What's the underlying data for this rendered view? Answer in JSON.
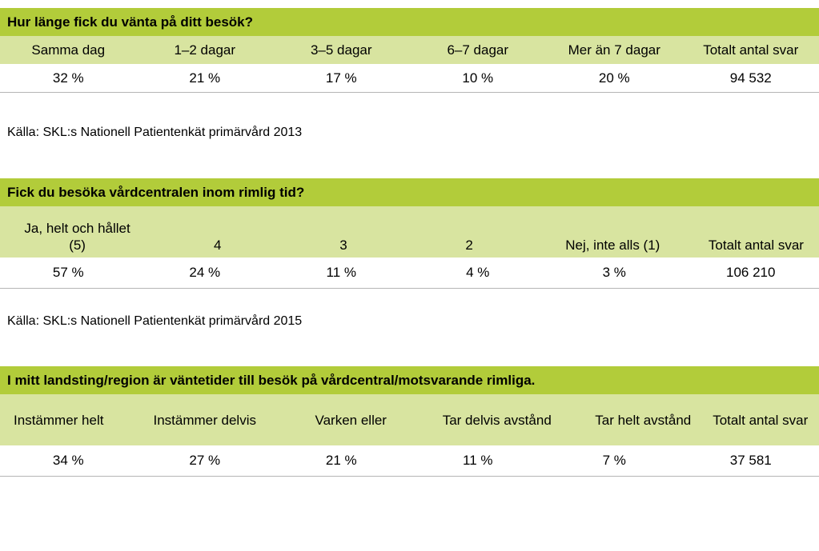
{
  "tables": [
    {
      "title": "Hur länge fick du vänta på ditt besök?",
      "headers": [
        "Samma dag",
        "1–2 dagar",
        "3–5 dagar",
        "6–7 dagar",
        "Mer än 7 dagar",
        "Totalt antal svar"
      ],
      "values": [
        "32 %",
        "21 %",
        "17 %",
        "10 %",
        "20 %",
        "94 532"
      ],
      "source": "Källa: SKL:s Nationell Patientenkät primärvård 2013"
    },
    {
      "title": "Fick du besöka vårdcentralen inom rimlig tid?",
      "headers": [
        "Ja, helt och hållet (5)",
        "4",
        "3",
        "2",
        "Nej, inte alls (1)",
        "Totalt antal svar"
      ],
      "values": [
        "57 %",
        "24 %",
        "11 %",
        "4 %",
        "3 %",
        "106 210"
      ],
      "source": "Källa: SKL:s Nationell Patientenkät primärvård 2015"
    },
    {
      "title": "I mitt landsting/region är väntetider till besök på vårdcentral/motsvarande rimliga.",
      "headers": [
        "Instämmer helt",
        "Instämmer delvis",
        "Varken eller",
        "Tar delvis avstånd",
        "Tar helt avstånd",
        "Totalt antal svar"
      ],
      "values": [
        "34 %",
        "27 %",
        "21 %",
        "11 %",
        "7 %",
        "37 581"
      ]
    }
  ]
}
